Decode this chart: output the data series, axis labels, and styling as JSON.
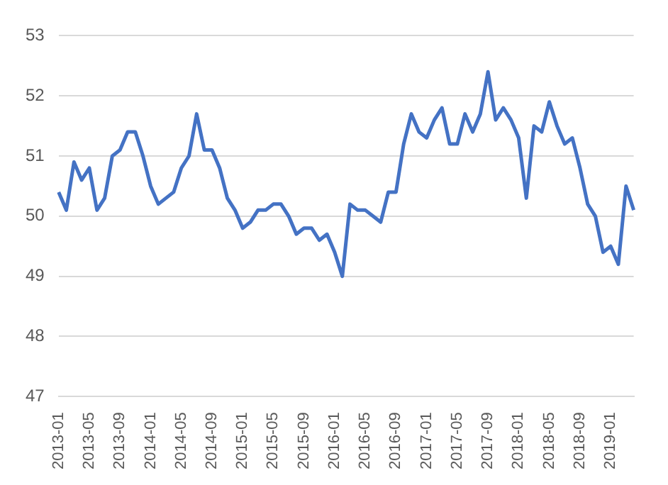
{
  "chart_data": {
    "type": "line",
    "categories": [
      "2013-01",
      null,
      null,
      null,
      "2013-05",
      null,
      null,
      null,
      "2013-09",
      null,
      null,
      null,
      "2014-01",
      null,
      null,
      null,
      "2014-05",
      null,
      null,
      null,
      "2014-09",
      null,
      null,
      null,
      "2015-01",
      null,
      null,
      null,
      "2015-05",
      null,
      null,
      null,
      "2015-09",
      null,
      null,
      null,
      "2016-01",
      null,
      null,
      null,
      "2016-05",
      null,
      null,
      null,
      "2016-09",
      null,
      null,
      null,
      "2017-01",
      null,
      null,
      null,
      "2017-05",
      null,
      null,
      null,
      "2017-09",
      null,
      null,
      null,
      "2018-01",
      null,
      null,
      null,
      "2018-05",
      null,
      null,
      null,
      "2018-09",
      null,
      null,
      null,
      "2019-01",
      null,
      null,
      null
    ],
    "series": [
      {
        "color": "#4472c4",
        "values": [
          50.4,
          50.1,
          50.9,
          50.6,
          50.8,
          50.1,
          50.3,
          51.0,
          51.1,
          51.4,
          51.4,
          51.0,
          50.5,
          50.2,
          50.3,
          50.4,
          50.8,
          51.0,
          51.7,
          51.1,
          51.1,
          50.8,
          50.3,
          50.1,
          49.8,
          49.9,
          50.1,
          50.1,
          50.2,
          50.2,
          50.0,
          49.7,
          49.8,
          49.8,
          49.6,
          49.7,
          49.4,
          49.0,
          50.2,
          50.1,
          50.1,
          50.0,
          49.9,
          50.4,
          50.4,
          51.2,
          51.7,
          51.4,
          51.3,
          51.6,
          51.8,
          51.2,
          51.2,
          51.7,
          51.4,
          51.7,
          52.4,
          51.6,
          51.8,
          51.6,
          51.3,
          50.3,
          51.5,
          51.4,
          51.9,
          51.5,
          51.2,
          51.3,
          50.8,
          50.2,
          50.0,
          49.4,
          49.5,
          49.2,
          50.5,
          50.1
        ]
      }
    ],
    "ylim": [
      47,
      53
    ],
    "yticks": [
      47,
      48,
      49,
      50,
      51,
      52,
      53
    ],
    "grid": "y",
    "legend": false,
    "marker": "none",
    "line_style": "solid"
  }
}
